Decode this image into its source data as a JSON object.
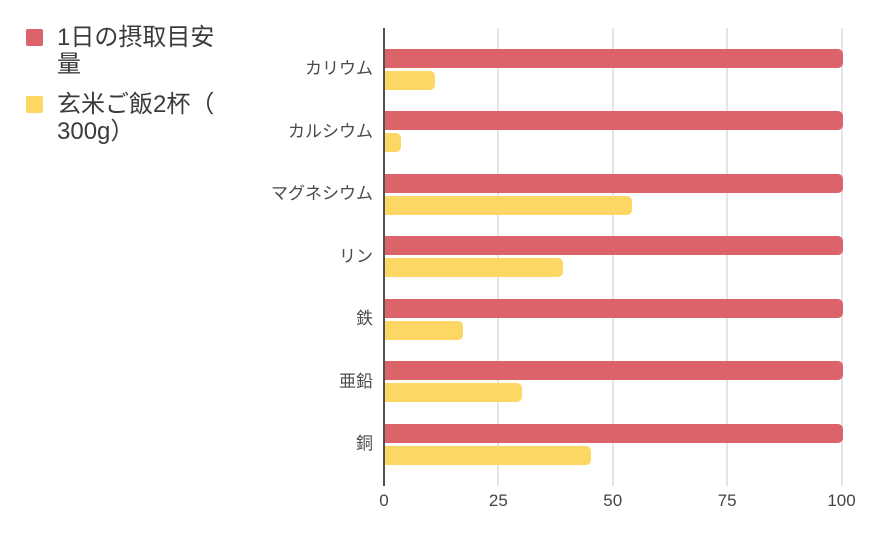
{
  "chart_data": {
    "type": "bar",
    "orientation": "horizontal",
    "title": "",
    "xlabel": "",
    "ylabel": "",
    "categories": [
      "カリウム",
      "カルシウム",
      "マグネシウム",
      "リン",
      "鉄",
      "亜鉛",
      "銅"
    ],
    "series": [
      {
        "name": "1日の摂取目安量",
        "color": "#dc636a",
        "values": [
          100,
          100,
          100,
          100,
          100,
          100,
          100
        ]
      },
      {
        "name": "玄米ご飯2杯（300g）",
        "color": "#fcd763",
        "values": [
          11,
          3.5,
          54,
          39,
          17,
          30,
          45
        ]
      }
    ],
    "xlim": [
      0,
      100
    ],
    "x_ticks": [
      0,
      25,
      50,
      75,
      100
    ],
    "grid": true,
    "legend_position": "top-left"
  },
  "legend": {
    "items": [
      {
        "label": "1日の摂取目安\n量",
        "color": "#dc636a"
      },
      {
        "label": "玄米ご飯2杯（\n300g）",
        "color": "#fcd763"
      }
    ]
  },
  "colors": {
    "series_red": "#dc636a",
    "series_yellow": "#fcd763",
    "axis_line": "#505050",
    "gridline": "#e5e5e5",
    "label_text": "#4a4a4a",
    "legend_text": "#3b3b3b",
    "background": "#ffffff"
  }
}
